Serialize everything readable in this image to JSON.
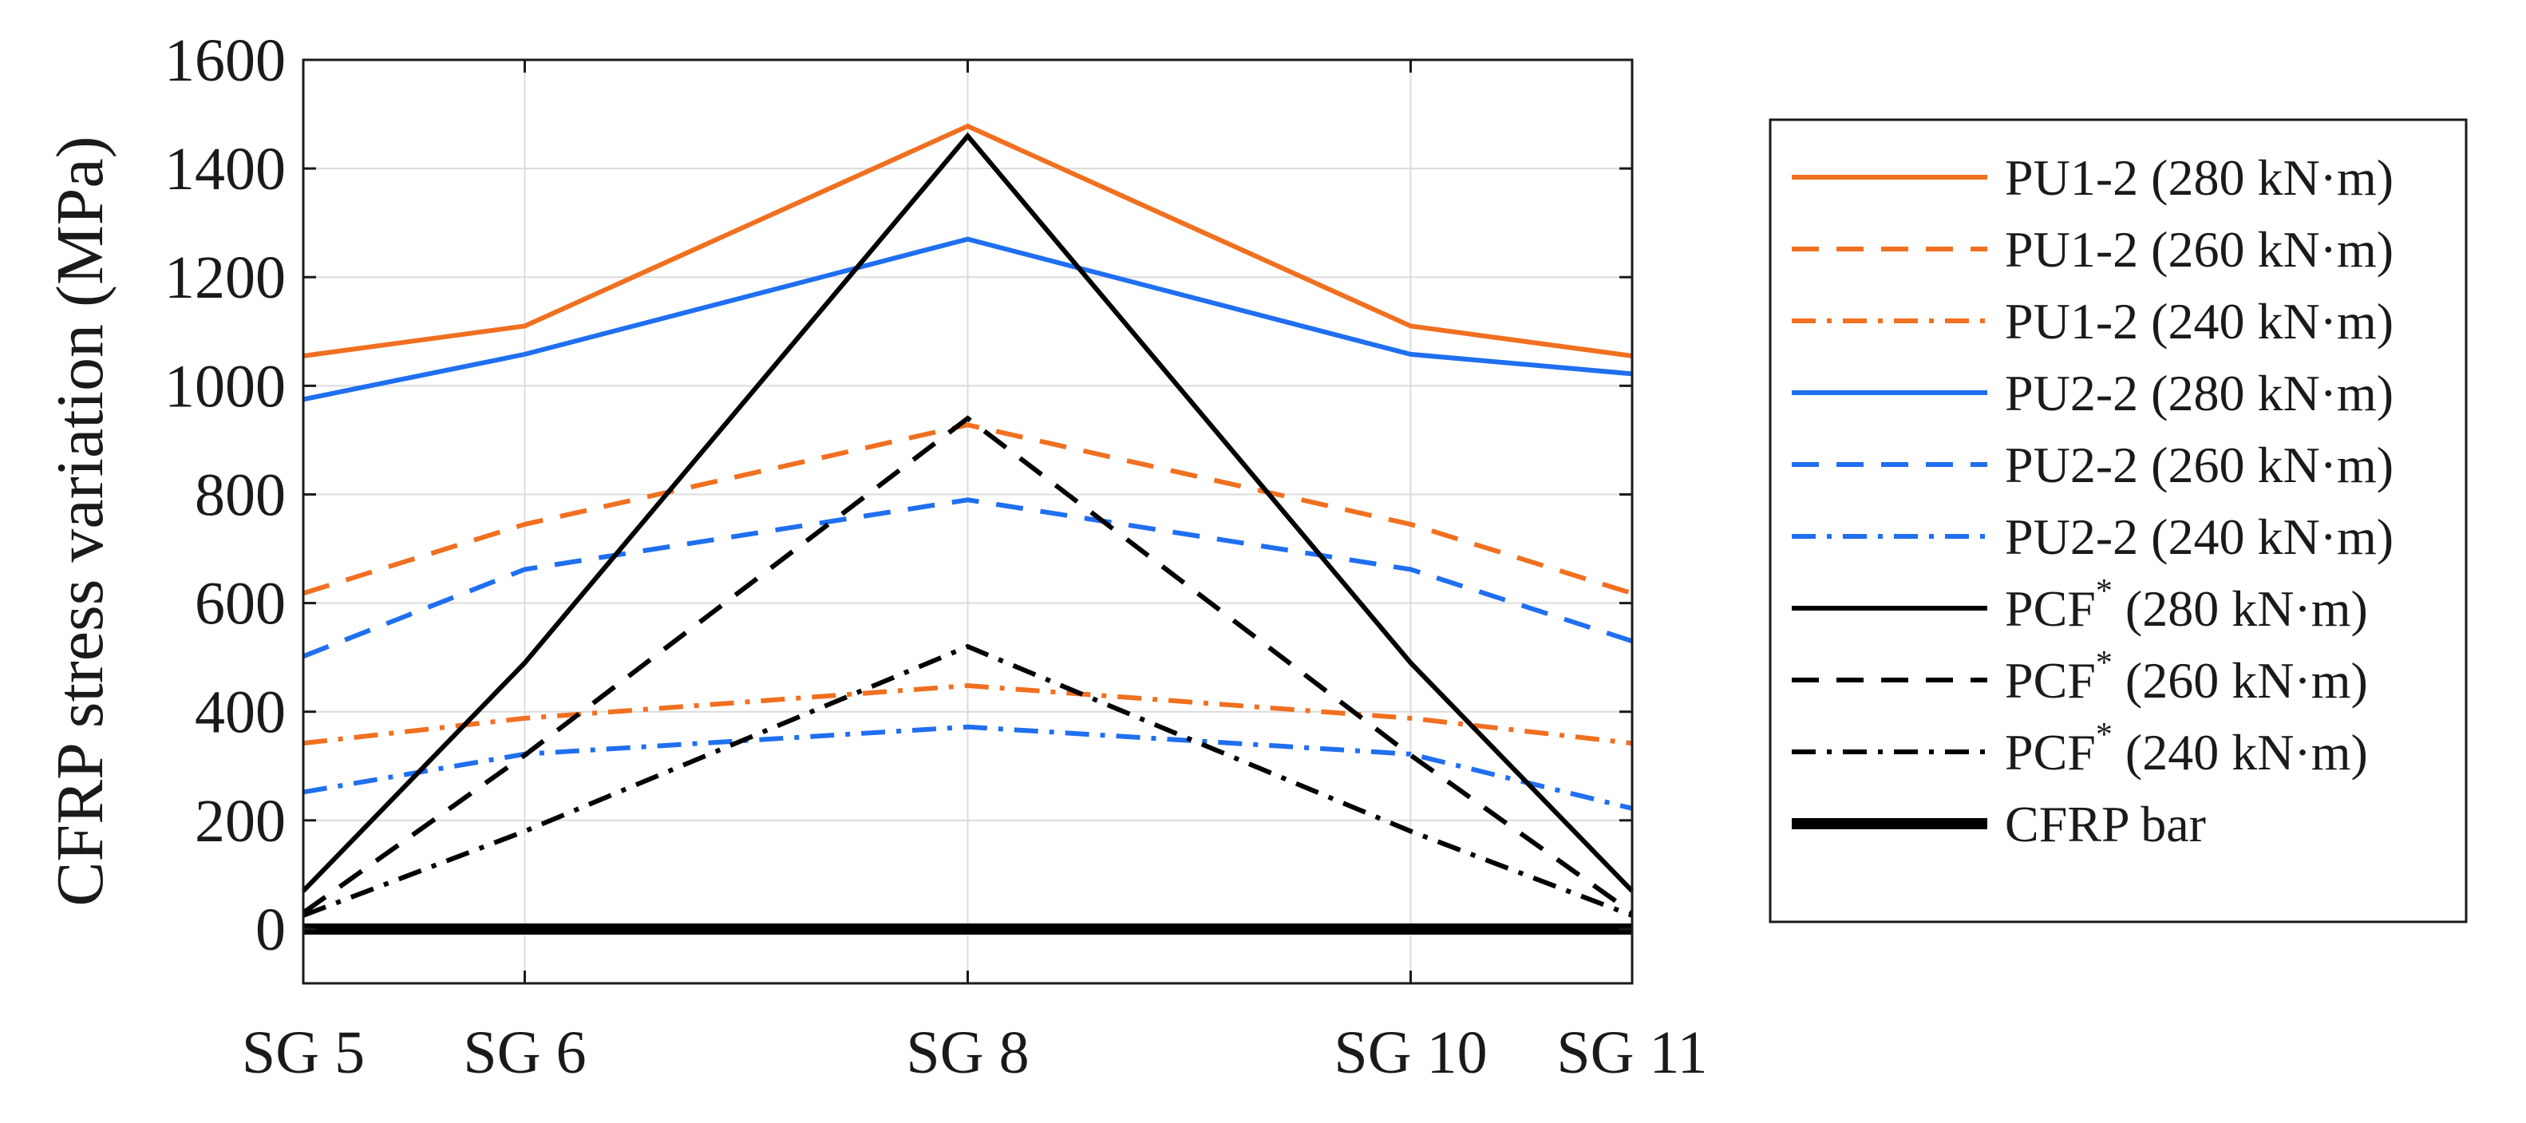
{
  "chart_data": {
    "type": "line",
    "title": "",
    "xlabel": "",
    "ylabel": "CFRP stress variation (MPa)",
    "categories": [
      "SG 5",
      "SG 6",
      "SG 8",
      "SG 10",
      "SG 11"
    ],
    "x": [
      5,
      6,
      8,
      10,
      11
    ],
    "xlim": [
      5,
      11
    ],
    "ylim": [
      -100,
      1600
    ],
    "yticks": [
      0,
      200,
      400,
      600,
      800,
      1000,
      1200,
      1400,
      1600
    ],
    "grid": true,
    "legend_position": "outside-right",
    "series": [
      {
        "name": "PU1-2",
        "suffix": "(280 kN·m)",
        "sup": "",
        "color": "#f07020",
        "dash": "solid",
        "values": [
          1055,
          1110,
          1478,
          1110,
          1055
        ]
      },
      {
        "name": "PU1-2",
        "suffix": "(260 kN·m)",
        "sup": "",
        "color": "#f07020",
        "dash": "dashed",
        "values": [
          618,
          745,
          928,
          745,
          618
        ]
      },
      {
        "name": "PU1-2",
        "suffix": "(240 kN·m)",
        "sup": "",
        "color": "#f07020",
        "dash": "dashdot",
        "values": [
          342,
          388,
          448,
          388,
          342
        ]
      },
      {
        "name": "PU2-2",
        "suffix": "(280 kN·m)",
        "sup": "",
        "color": "#1f6ff0",
        "dash": "solid",
        "values": [
          975,
          1058,
          1270,
          1058,
          1022
        ]
      },
      {
        "name": "PU2-2",
        "suffix": "(260 kN·m)",
        "sup": "",
        "color": "#1f6ff0",
        "dash": "dashed",
        "values": [
          502,
          662,
          790,
          662,
          530
        ]
      },
      {
        "name": "PU2-2",
        "suffix": "(240 kN·m)",
        "sup": "",
        "color": "#1f6ff0",
        "dash": "dashdot",
        "values": [
          252,
          322,
          372,
          322,
          222
        ]
      },
      {
        "name": "PCF",
        "suffix": "(280 kN·m)",
        "sup": "*",
        "color": "#000000",
        "dash": "solid",
        "values": [
          70,
          490,
          1460,
          490,
          70
        ]
      },
      {
        "name": "PCF",
        "suffix": "(260 kN·m)",
        "sup": "*",
        "color": "#000000",
        "dash": "dashed",
        "values": [
          30,
          320,
          940,
          320,
          30
        ]
      },
      {
        "name": "PCF",
        "suffix": "(240 kN·m)",
        "sup": "*",
        "color": "#000000",
        "dash": "dashdot",
        "values": [
          25,
          180,
          520,
          180,
          25
        ]
      },
      {
        "name": "CFRP bar",
        "suffix": "",
        "sup": "",
        "color": "#000000",
        "dash": "thick",
        "values": [
          0,
          0,
          0,
          0,
          0
        ]
      }
    ]
  }
}
